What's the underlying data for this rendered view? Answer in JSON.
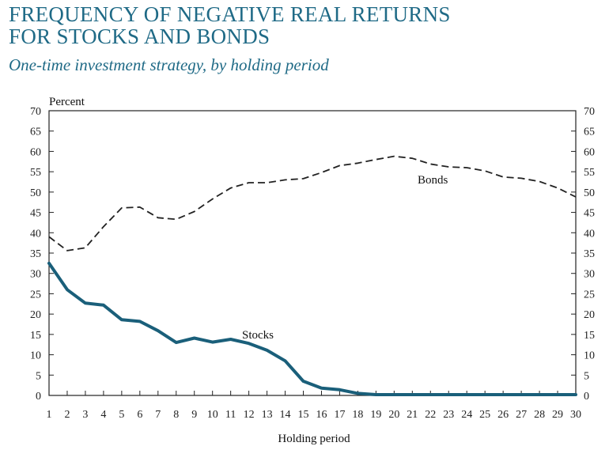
{
  "chart_data": {
    "type": "line",
    "title_lines": [
      "FREQUENCY OF NEGATIVE REAL RETURNS",
      "FOR STOCKS AND BONDS"
    ],
    "subtitle": "One-time investment strategy, by holding period",
    "xlabel": "Holding period",
    "ylabel": "Percent",
    "x": [
      1,
      2,
      3,
      4,
      5,
      6,
      7,
      8,
      9,
      10,
      11,
      12,
      13,
      14,
      15,
      16,
      17,
      18,
      19,
      20,
      21,
      22,
      23,
      24,
      25,
      26,
      27,
      28,
      29,
      30
    ],
    "xlim": [
      1,
      30
    ],
    "ylim": [
      0,
      70
    ],
    "yticks": [
      0,
      5,
      10,
      15,
      20,
      25,
      30,
      35,
      40,
      45,
      50,
      55,
      60,
      65,
      70
    ],
    "grid": false,
    "legend": "none",
    "series": [
      {
        "name": "Stocks",
        "style": "solid",
        "color": "#1a5f7a",
        "values": [
          32.5,
          26.0,
          22.7,
          22.2,
          18.6,
          18.2,
          15.9,
          13.0,
          14.1,
          13.1,
          13.8,
          12.8,
          11.1,
          8.5,
          3.5,
          1.8,
          1.4,
          0.5,
          0.2,
          0.2,
          0.2,
          0.2,
          0.2,
          0.2,
          0.2,
          0.2,
          0.2,
          0.2,
          0.2,
          0.2
        ]
      },
      {
        "name": "Bonds",
        "style": "dashed",
        "color": "#222222",
        "values": [
          39.0,
          35.6,
          36.3,
          41.5,
          46.1,
          46.3,
          43.7,
          43.3,
          45.2,
          48.3,
          51.0,
          52.3,
          52.3,
          53.0,
          53.3,
          54.8,
          56.5,
          57.1,
          58.0,
          58.8,
          58.3,
          56.9,
          56.2,
          56.0,
          55.2,
          53.7,
          53.4,
          52.6,
          51.0,
          48.8
        ]
      }
    ]
  }
}
